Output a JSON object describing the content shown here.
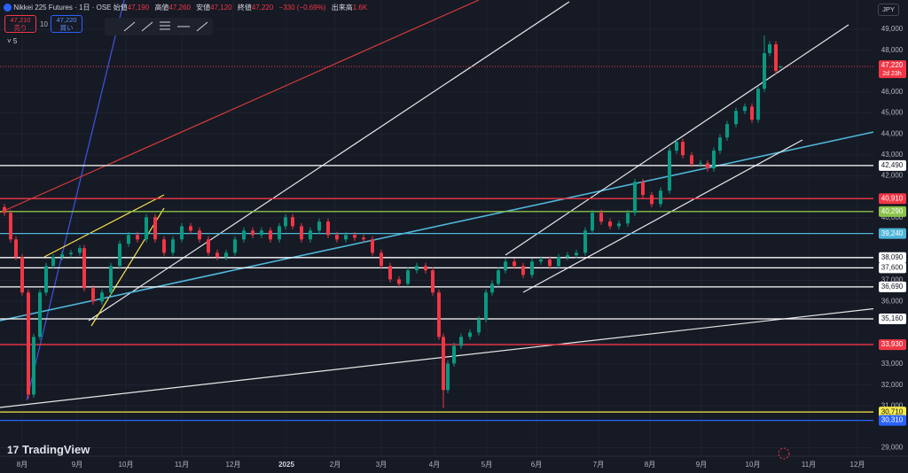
{
  "header": {
    "symbol": "Nikkei 225 Futures · 1日 · OSE",
    "open_label": "始値",
    "open": "47,190",
    "high_label": "高値",
    "high": "47,260",
    "low_label": "安値",
    "low": "47,120",
    "close_label": "終値",
    "close": "47,220",
    "change": "−330 (−0.69%)",
    "volume_label": "出来高",
    "volume": "1.6K",
    "sell_price": "47,210",
    "sell_label": "売り",
    "spread": "10",
    "buy_price": "47,220",
    "buy_label": "買い",
    "indicator": "5",
    "currency": "JPY",
    "brand": "TradingView"
  },
  "chart_data": {
    "type": "candlestick",
    "x": [
      5,
      12,
      18,
      25,
      32,
      38,
      45,
      52,
      60,
      70,
      80,
      90,
      95,
      105,
      115,
      125,
      135,
      145,
      155,
      165,
      175,
      185,
      195,
      205,
      215,
      225,
      235,
      245,
      255,
      265,
      275,
      285,
      295,
      305,
      315,
      322,
      330,
      340,
      350,
      360,
      370,
      380,
      390,
      400,
      410,
      420,
      430,
      440,
      450,
      460,
      470,
      480,
      488,
      495,
      500,
      505,
      512,
      520,
      530,
      540,
      548,
      555,
      562,
      570,
      580,
      590,
      600,
      610,
      620,
      630,
      640,
      650,
      660,
      668,
      678,
      688,
      698,
      708,
      716,
      725,
      735,
      745,
      755,
      763,
      770,
      780,
      790,
      798,
      805,
      812,
      820,
      830,
      840,
      848,
      855,
      862,
      868,
      875,
      880
    ],
    "open": [
      40500,
      40230,
      38960,
      38110,
      36420,
      31540,
      34300,
      36420,
      37690,
      38110,
      38250,
      38320,
      38540,
      36630,
      35990,
      36420,
      37690,
      38750,
      39170,
      38960,
      40020,
      38960,
      38320,
      38960,
      39590,
      39380,
      38960,
      38320,
      38110,
      38320,
      38960,
      39380,
      39170,
      39380,
      38960,
      39590,
      40020,
      39590,
      38960,
      39380,
      39810,
      39170,
      38960,
      39170,
      39040,
      38960,
      38320,
      37690,
      37050,
      36840,
      37480,
      37690,
      37480,
      36420,
      34300,
      31760,
      33030,
      33870,
      34300,
      34510,
      35150,
      36420,
      36840,
      37480,
      37900,
      37690,
      37260,
      37900,
      38000,
      37690,
      38110,
      38200,
      38320,
      39380,
      40230,
      39810,
      39590,
      39720,
      40230,
      41710,
      41080,
      40650,
      41290,
      43200,
      43620,
      42980,
      42560,
      42600,
      42350,
      43200,
      43830,
      44470,
      45100,
      45310,
      44680,
      46160,
      47860,
      48280,
      47190
    ],
    "high": [
      40650,
      40380,
      39110,
      38260,
      36570,
      34450,
      36570,
      37840,
      38260,
      38400,
      38470,
      38690,
      38690,
      36780,
      36570,
      37840,
      38900,
      39320,
      39320,
      40170,
      40170,
      39110,
      39110,
      39740,
      39740,
      39530,
      39110,
      38470,
      38470,
      39110,
      39530,
      39530,
      39530,
      39530,
      39740,
      40170,
      40170,
      39740,
      39530,
      39960,
      39960,
      39320,
      39320,
      39320,
      39190,
      39110,
      38470,
      37840,
      37200,
      37630,
      37840,
      37840,
      37630,
      36570,
      34450,
      33180,
      34020,
      34450,
      34660,
      35300,
      36570,
      36990,
      37630,
      38050,
      38050,
      37840,
      38050,
      38150,
      38150,
      38260,
      38350,
      38470,
      39530,
      40380,
      40380,
      39960,
      39870,
      40380,
      41860,
      41860,
      41230,
      41440,
      43350,
      43770,
      43770,
      43130,
      42750,
      42750,
      43350,
      43980,
      44620,
      45250,
      45460,
      45460,
      46310,
      48700,
      48430,
      48430,
      47260
    ],
    "low": [
      40080,
      38810,
      37960,
      36270,
      31330,
      31390,
      34150,
      36270,
      37540,
      37960,
      38100,
      38170,
      36480,
      35840,
      35840,
      36270,
      37540,
      38600,
      38810,
      38810,
      38810,
      38170,
      38170,
      38810,
      39230,
      38810,
      38170,
      37960,
      37960,
      38170,
      38810,
      39020,
      39020,
      38810,
      38810,
      39440,
      39440,
      38810,
      38810,
      39230,
      39020,
      38810,
      38810,
      38890,
      38810,
      38170,
      37540,
      36900,
      36690,
      36690,
      37330,
      37330,
      36270,
      34150,
      30900,
      31610,
      32880,
      33720,
      34150,
      34360,
      35000,
      36270,
      36690,
      37330,
      37540,
      37110,
      37110,
      37750,
      37540,
      37540,
      37960,
      38050,
      38170,
      39230,
      39660,
      39440,
      39440,
      39570,
      40080,
      40930,
      40500,
      40500,
      41140,
      43050,
      42830,
      42410,
      42410,
      42200,
      42200,
      43050,
      43680,
      44320,
      44950,
      44530,
      44530,
      46010,
      47710,
      46860,
      47120
    ],
    "close": [
      40230,
      38960,
      38110,
      36420,
      31540,
      34300,
      36420,
      37690,
      38110,
      38250,
      38320,
      38540,
      36630,
      35990,
      36420,
      37690,
      38750,
      39170,
      38960,
      40020,
      38960,
      38320,
      38960,
      39590,
      39380,
      38960,
      38320,
      38110,
      38320,
      38960,
      39380,
      39170,
      39380,
      38960,
      39590,
      40020,
      39590,
      38960,
      39380,
      39810,
      39170,
      38960,
      39170,
      39040,
      38960,
      38320,
      37690,
      37050,
      36840,
      37480,
      37690,
      37480,
      36420,
      34300,
      31760,
      33030,
      33870,
      34300,
      34510,
      35150,
      36420,
      36840,
      37480,
      37900,
      37690,
      37260,
      37900,
      38000,
      37690,
      38110,
      38200,
      38320,
      39380,
      40230,
      39810,
      39590,
      39720,
      40230,
      41710,
      41080,
      40650,
      41290,
      43200,
      43620,
      42980,
      42560,
      42600,
      42350,
      43200,
      43830,
      44470,
      45100,
      45310,
      44680,
      46160,
      47860,
      48280,
      47010,
      47220
    ],
    "up_color": "#089981",
    "down_color": "#f23645",
    "xlim": [
      0,
      985
    ],
    "xticks": [
      {
        "value": 25,
        "label": "8月"
      },
      {
        "value": 87,
        "label": "9月"
      },
      {
        "value": 142,
        "label": "10月"
      },
      {
        "value": 205,
        "label": "11月"
      },
      {
        "value": 263,
        "label": "12月"
      },
      {
        "value": 323,
        "label": "2025"
      },
      {
        "value": 378,
        "label": "2月"
      },
      {
        "value": 430,
        "label": "3月"
      },
      {
        "value": 490,
        "label": "4月"
      },
      {
        "value": 549,
        "label": "5月"
      },
      {
        "value": 605,
        "label": "6月"
      },
      {
        "value": 675,
        "label": "7月"
      },
      {
        "value": 733,
        "label": "8月"
      },
      {
        "value": 791,
        "label": "9月"
      },
      {
        "value": 849,
        "label": "10月"
      },
      {
        "value": 912,
        "label": "11月"
      },
      {
        "value": 967,
        "label": "12月"
      }
    ],
    "ylim": [
      28600,
      50400
    ],
    "yticks": [
      {
        "value": 29000,
        "label": "29,000"
      },
      {
        "value": 31000,
        "label": "31,000"
      },
      {
        "value": 32000,
        "label": "32,000"
      },
      {
        "value": 33000,
        "label": "33,000"
      },
      {
        "value": 34000,
        "label": "34,000"
      },
      {
        "value": 36000,
        "label": "36,000"
      },
      {
        "value": 37000,
        "label": "37,000"
      },
      {
        "value": 40000,
        "label": "40,000"
      },
      {
        "value": 42000,
        "label": "42,000"
      },
      {
        "value": 43000,
        "label": "43,000"
      },
      {
        "value": 44000,
        "label": "44,000"
      },
      {
        "value": 45000,
        "label": "45,000"
      },
      {
        "value": 46000,
        "label": "46,000"
      },
      {
        "value": 48000,
        "label": "48,000"
      },
      {
        "value": 49000,
        "label": "49,000"
      }
    ],
    "grid": true,
    "levels": [
      {
        "value": 42490,
        "label": "42,490",
        "color": "#ffffff"
      },
      {
        "value": 40910,
        "label": "40,910",
        "color": "#f23645"
      },
      {
        "value": 40290,
        "label": "40,290",
        "color": "#8bc34a"
      },
      {
        "value": 39240,
        "label": "39,240",
        "color": "#4fb6d8"
      },
      {
        "value": 38090,
        "label": "38,090",
        "color": "#ffffff"
      },
      {
        "value": 37600,
        "label": "37,600",
        "color": "#ffffff"
      },
      {
        "value": 36690,
        "label": "36,690",
        "color": "#ffffff"
      },
      {
        "value": 35160,
        "label": "35,160",
        "color": "#ffffff"
      },
      {
        "value": 33930,
        "label": "33,930",
        "color": "#f23645"
      },
      {
        "value": 30710,
        "label": "30,710",
        "color": "#f5e94a"
      },
      {
        "value": 30310,
        "label": "30,310",
        "color": "#2962ff"
      }
    ],
    "last_price": {
      "value": 47220,
      "label": "47,220",
      "countdown": "2d 23h",
      "color": "#f23645"
    }
  }
}
